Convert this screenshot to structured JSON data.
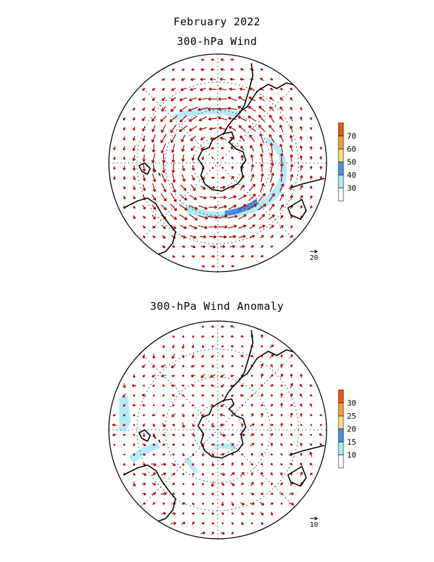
{
  "title_line1": "February 2022",
  "title_line2": "300-hPa Wind",
  "anomaly_title": "300-hPa Wind Anomaly",
  "colors": {
    "vector": "#aa0000",
    "coast": "#000000"
  },
  "top_panel": {
    "colorbar": {
      "labels": [
        "30",
        "40",
        "50",
        "60",
        "70"
      ],
      "colors": [
        "#ffffff",
        "#b3ecf9",
        "#4f8fe8",
        "#fbe07c",
        "#f2a23a",
        "#ef5a0f"
      ]
    },
    "ref_vector_label": "20"
  },
  "bottom_panel": {
    "colorbar": {
      "labels": [
        "10",
        "15",
        "20",
        "25",
        "30"
      ],
      "colors": [
        "#ffffff",
        "#b3ecf9",
        "#4f8fe8",
        "#fbe07c",
        "#f2a23a",
        "#ef5a0f"
      ]
    },
    "ref_vector_label": "10"
  }
}
